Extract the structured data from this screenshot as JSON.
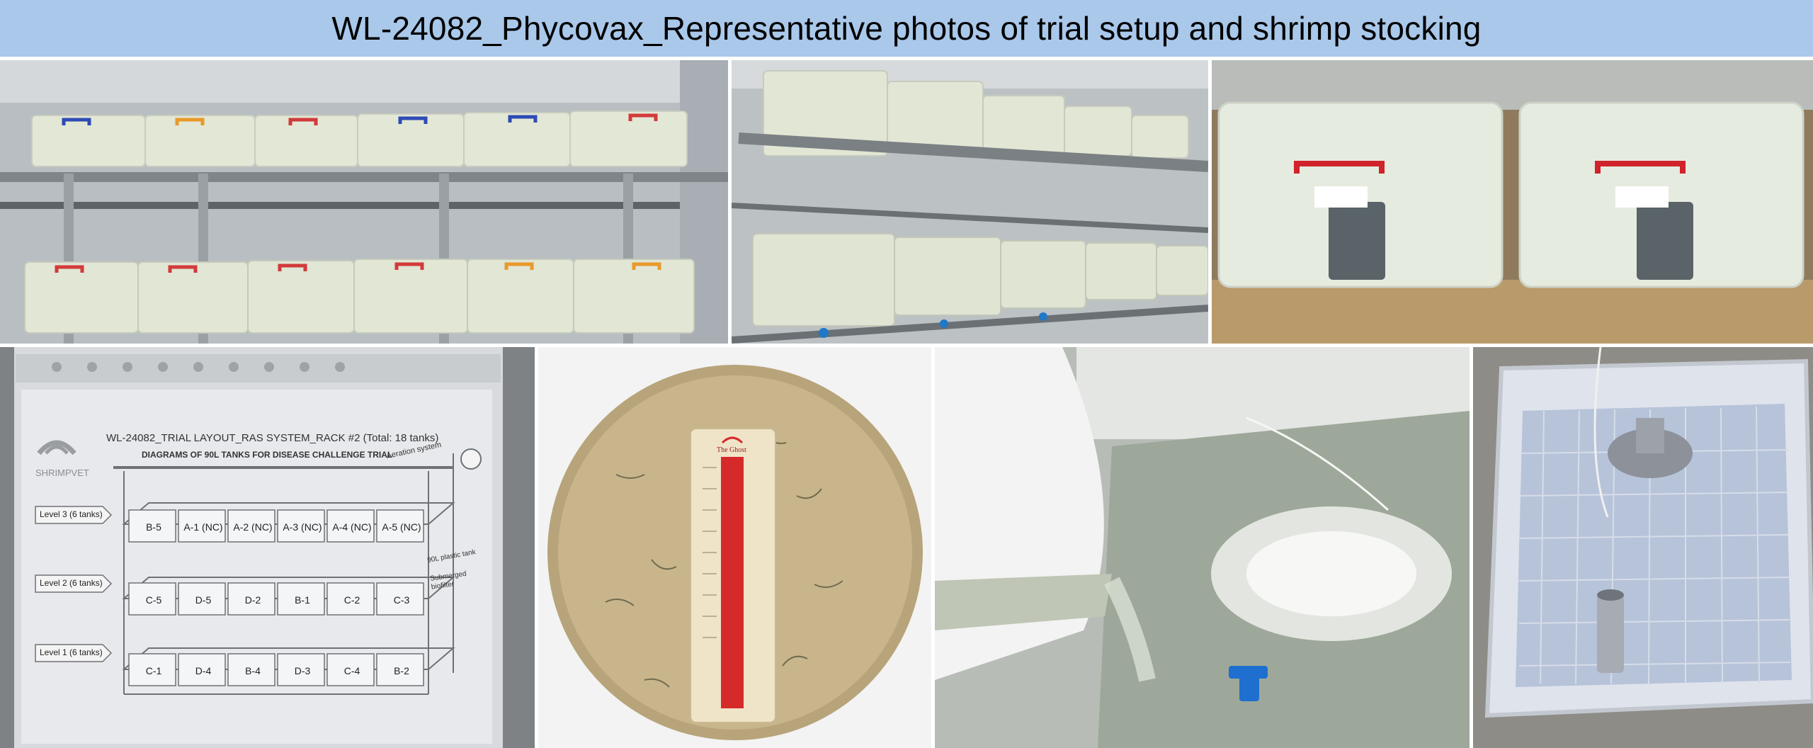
{
  "header": {
    "title": "WL-24082_Phycovax_Representative photos of trial setup and shrimp stocking"
  },
  "photos": [
    {
      "subject": "two-level rack of clear plastic tanks with blue and red lids"
    },
    {
      "subject": "angled view of stacked tank rack with grey pipes"
    },
    {
      "subject": "close-up of two clear tanks with red handles and labels"
    },
    {
      "subject": "laminated trial layout sheet",
      "layout": {
        "title": "WL-24082_TRIAL LAYOUT_RAS SYSTEM_RACK #2 (Total: 18 tanks)",
        "subtitle": "DIAGRAMS OF 90L TANKS FOR DISEASE CHALLENGE TRIAL",
        "logo_text": "SHRIMPVET",
        "aeration_label": "Aeration system",
        "plastic_tank_label": "90L plastic tank",
        "biofilter_label": "Submerged biofilter",
        "levels": [
          {
            "label": "Level 3 (6 tanks)",
            "tanks": [
              "B-5",
              "A-1 (NC)",
              "A-2 (NC)",
              "A-3 (NC)",
              "A-4 (NC)",
              "A-5 (NC)"
            ]
          },
          {
            "label": "Level 2 (6 tanks)",
            "tanks": [
              "C-5",
              "D-5",
              "D-2",
              "B-1",
              "C-2",
              "C-3"
            ]
          },
          {
            "label": "Level 1 (6 tanks)",
            "tanks": [
              "C-1",
              "D-4",
              "B-4",
              "D-3",
              "C-4",
              "B-2"
            ]
          }
        ]
      }
    },
    {
      "subject": "shrimp post-larvae in bowl with thermometer",
      "thermometer_label": "The Ghost"
    },
    {
      "subject": "pouring shrimp from bowl into tank"
    },
    {
      "subject": "top view of empty tank with biofilter and standpipe"
    }
  ]
}
